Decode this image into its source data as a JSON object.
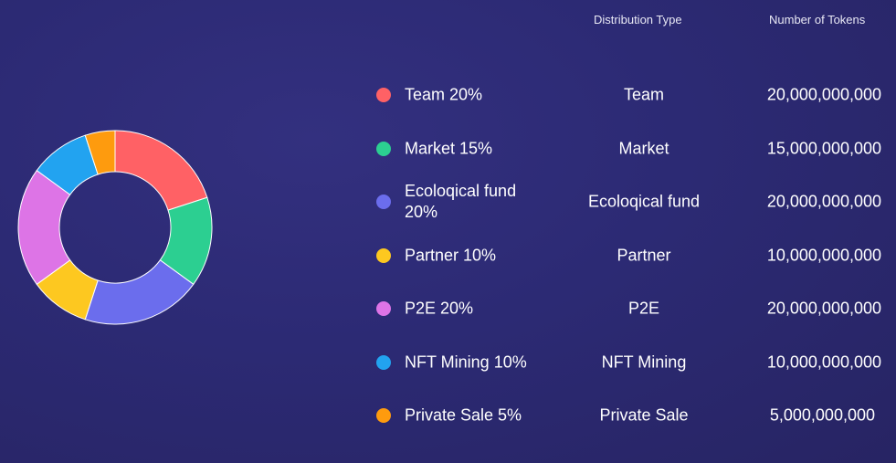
{
  "headers": {
    "distribution_type": "Distribution Type",
    "number_of_tokens": "Number of Tokens"
  },
  "chart_data": {
    "type": "pie",
    "style": "donut",
    "legend_placement": "right",
    "slices": [
      {
        "label": "Team 20%",
        "value": 20,
        "color": "#ff6165"
      },
      {
        "label": "Market 15%",
        "value": 15,
        "color": "#2ccf91"
      },
      {
        "label": "Ecoloqical fund 20%",
        "value": 20,
        "color": "#6b6ded"
      },
      {
        "label": "Partner 10%",
        "value": 10,
        "color": "#fdc820"
      },
      {
        "label": "P2E 20%",
        "value": 20,
        "color": "#dd74e6"
      },
      {
        "label": "NFT Mining 10%",
        "value": 10,
        "color": "#22a3f0"
      },
      {
        "label": "Private Sale 5%",
        "value": 5,
        "color": "#fe9b0e"
      }
    ]
  },
  "table": {
    "rows": [
      {
        "type": "Team",
        "tokens": "20,000,000,000"
      },
      {
        "type": "Market",
        "tokens": "15,000,000,000"
      },
      {
        "type": "Ecoloqical fund",
        "tokens": "20,000,000,000"
      },
      {
        "type": "Partner",
        "tokens": "10,000,000,000"
      },
      {
        "type": "P2E",
        "tokens": "20,000,000,000"
      },
      {
        "type": "NFT Mining",
        "tokens": "10,000,000,000"
      },
      {
        "type": "Private Sale",
        "tokens": "5,000,000,000"
      }
    ]
  }
}
